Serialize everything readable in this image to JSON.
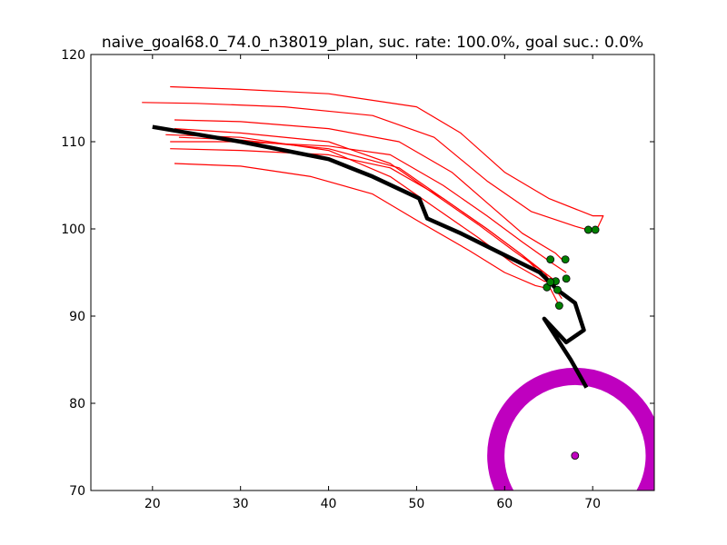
{
  "chart_data": {
    "type": "line",
    "title": "naive_goal68.0_74.0_n38019_plan, suc. rate: 100.0%, goal suc.: 0.0%",
    "xlabel": "",
    "ylabel": "",
    "xlim": [
      13,
      77
    ],
    "ylim": [
      70,
      120
    ],
    "x_ticks": [
      "20",
      "30",
      "40",
      "50",
      "60",
      "70"
    ],
    "y_ticks": [
      "70",
      "80",
      "90",
      "100",
      "110",
      "120"
    ],
    "grid": false,
    "colors": {
      "trajectories": "#ff0000",
      "plan": "#000000",
      "endpoints": "#008000",
      "goal_ring": "#bf00bf",
      "goal_point": "#bf00bf"
    },
    "series": [
      {
        "role": "trajectory",
        "x": [
          22.0,
          30,
          40,
          50,
          55,
          60,
          65,
          70,
          71.2,
          70.5
        ],
        "y": [
          116.3,
          116.0,
          115.5,
          114.0,
          111.0,
          106.5,
          103.5,
          101.5,
          101.5,
          100.0
        ]
      },
      {
        "role": "trajectory",
        "x": [
          18.8,
          25,
          35,
          45,
          52,
          58,
          63,
          68,
          69.8
        ],
        "y": [
          114.5,
          114.4,
          114.0,
          113.0,
          110.5,
          105.5,
          102.0,
          100.3,
          99.8
        ]
      },
      {
        "role": "trajectory",
        "x": [
          22.5,
          30,
          40,
          48,
          54,
          58,
          62,
          65.8,
          66.5
        ],
        "y": [
          112.5,
          112.3,
          111.5,
          110.0,
          106.5,
          103.0,
          99.5,
          97.2,
          96.5
        ]
      },
      {
        "role": "trajectory",
        "x": [
          22.0,
          30,
          40,
          47,
          53,
          58,
          62,
          65.5,
          67.0
        ],
        "y": [
          110.0,
          110.0,
          109.5,
          108.5,
          105.0,
          101.5,
          98.5,
          96.0,
          95.0
        ]
      },
      {
        "role": "trajectory",
        "x": [
          22.0,
          30,
          40,
          47,
          53,
          58,
          62,
          64.5,
          65.8
        ],
        "y": [
          109.2,
          109.0,
          108.5,
          107.0,
          103.5,
          100.0,
          97.0,
          95.0,
          94.0
        ]
      },
      {
        "role": "trajectory",
        "x": [
          22.5,
          30,
          38,
          45,
          50,
          56,
          60,
          63.5,
          64.8
        ],
        "y": [
          107.5,
          107.2,
          106.0,
          104.0,
          101.0,
          97.5,
          95.0,
          93.5,
          93.2
        ]
      },
      {
        "role": "trajectory",
        "x": [
          21.5,
          30,
          40,
          47,
          52,
          57,
          61,
          64.5,
          65.2
        ],
        "y": [
          110.8,
          110.5,
          109.0,
          106.0,
          102.5,
          99.0,
          96.0,
          94.0,
          93.9
        ]
      },
      {
        "role": "trajectory",
        "x": [
          22.5,
          30,
          40,
          47,
          52,
          57,
          61,
          64.5,
          66.5
        ],
        "y": [
          111.5,
          111.0,
          110.0,
          107.5,
          104.0,
          100.5,
          97.5,
          95.0,
          92.0
        ]
      },
      {
        "role": "trajectory",
        "x": [
          23.0,
          30,
          40,
          48,
          53,
          58,
          62,
          64.5,
          66.2
        ],
        "y": [
          110.5,
          110.2,
          109.2,
          107.0,
          103.5,
          100.0,
          97.0,
          94.5,
          91.2
        ]
      },
      {
        "role": "plan",
        "x": [
          20.0,
          30,
          40,
          45,
          50.3,
          51.2,
          55,
          60,
          64,
          66,
          68,
          69,
          67,
          64.5,
          67.5,
          69.3
        ],
        "y": [
          111.7,
          110.0,
          108.0,
          106.0,
          103.5,
          101.2,
          99.5,
          97.0,
          95.0,
          93.0,
          91.5,
          88.4,
          87.0,
          89.7,
          85.0,
          81.8
        ]
      }
    ],
    "endpoints": {
      "x": [
        69.5,
        70.3,
        65.2,
        66.9,
        65.8,
        67.0,
        66.0,
        64.8,
        66.2,
        65.2
      ],
      "y": [
        99.9,
        99.9,
        96.5,
        96.5,
        94.0,
        94.3,
        93.0,
        93.3,
        91.2,
        93.9
      ]
    },
    "goal": {
      "x": 68.0,
      "y": 74.0,
      "ring_radius": 9.0
    }
  }
}
